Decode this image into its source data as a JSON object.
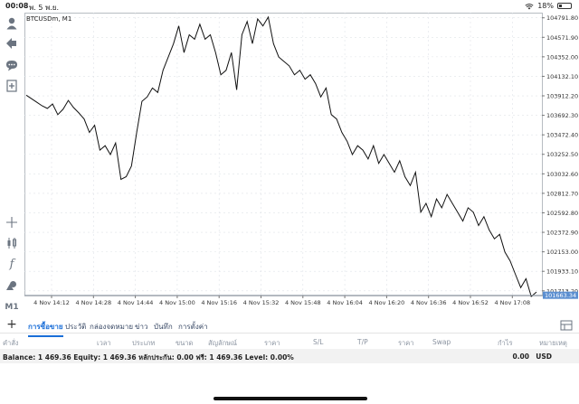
{
  "status": {
    "time": "00:08",
    "date": "พ. 5 พ.ย.",
    "battery_text": "18%",
    "battery_level": 0.18
  },
  "toolbar": {
    "icons": [
      "account-icon",
      "trade-icon",
      "chat-icon",
      "new-order-icon",
      "crosshair-icon",
      "candles-icon",
      "indicator-icon",
      "objects-icon",
      "timeframe-icon"
    ],
    "timeframe_label": "M1"
  },
  "chart": {
    "symbol": "BTCUSDm, M1",
    "current_price": "101663.34",
    "price_line_value": 101663.34,
    "y_ticks": [
      "104791.80",
      "104571.90",
      "104352.00",
      "104132.10",
      "103912.20",
      "103692.30",
      "103472.40",
      "103252.50",
      "103032.60",
      "102812.70",
      "102592.80",
      "102372.90",
      "102153.00",
      "101933.10",
      "101713.20"
    ],
    "x_ticks": [
      "4 Nov 14:12",
      "4 Nov 14:28",
      "4 Nov 14:44",
      "4 Nov 15:00",
      "4 Nov 15:16",
      "4 Nov 15:32",
      "4 Nov 15:48",
      "4 Nov 16:04",
      "4 Nov 16:20",
      "4 Nov 16:36",
      "4 Nov 16:52",
      "4 Nov 17:08"
    ]
  },
  "chart_data": {
    "type": "line",
    "title": "BTCUSDm, M1",
    "xlabel": "",
    "ylabel": "",
    "ylim": [
      101660,
      104850
    ],
    "grid": true,
    "x_range": [
      "4 Nov 14:00",
      "4 Nov 17:08"
    ],
    "series": [
      {
        "values": [
          103920,
          103880,
          103840,
          103800,
          103770,
          103820,
          103700,
          103760,
          103860,
          103780,
          103720,
          103650,
          103500,
          103580,
          103300,
          103350,
          103250,
          103380,
          102970,
          103000,
          103120,
          103500,
          103850,
          103900,
          104000,
          103950,
          104200,
          104350,
          104500,
          104700,
          104400,
          104600,
          104550,
          104720,
          104550,
          104600,
          104400,
          104150,
          104200,
          104400,
          103980,
          104600,
          104750,
          104500,
          104780,
          104700,
          104800,
          104500,
          104350,
          104300,
          104250,
          104150,
          104200,
          104100,
          104150,
          104050,
          103900,
          104000,
          103700,
          103650,
          103500,
          103400,
          103250,
          103350,
          103300,
          103200,
          103350,
          103150,
          103250,
          103150,
          103050,
          103180,
          103000,
          102900,
          103050,
          102600,
          102700,
          102550,
          102750,
          102650,
          102800,
          102700,
          102600,
          102500,
          102650,
          102600,
          102450,
          102550,
          102400,
          102300,
          102350,
          102150,
          102050,
          101900,
          101750,
          101850,
          101650,
          101700
        ]
      }
    ]
  },
  "tabs": [
    {
      "label": "การซื้อขาย",
      "active": true
    },
    {
      "label": "ประวัติ",
      "active": false
    },
    {
      "label": "กล่องจดหมาย",
      "active": false
    },
    {
      "label": "ข่าว",
      "active": false
    },
    {
      "label": "บันทึก",
      "active": false
    },
    {
      "label": "การตั้งค่า",
      "active": false
    }
  ],
  "columns": [
    "คำสั่ง",
    "เวลา",
    "ประเภท",
    "ขนาด",
    "สัญลักษณ์",
    "ราคา",
    "S/L",
    "T/P",
    "ราคา",
    "Swap",
    "กำไร",
    "หมายเหตุ"
  ],
  "balance": {
    "summary": "Balance: 1 469.36 Equity: 1 469.36 หลักประกัน: 0.00 ฟรี: 1 469.36 Level: 0.00%",
    "profit": "0.00",
    "currency": "USD"
  },
  "colors": {
    "active_tab": "#1a6ed8",
    "price_line": "#9aa3ad",
    "price_badge": "#5a8ed0"
  }
}
